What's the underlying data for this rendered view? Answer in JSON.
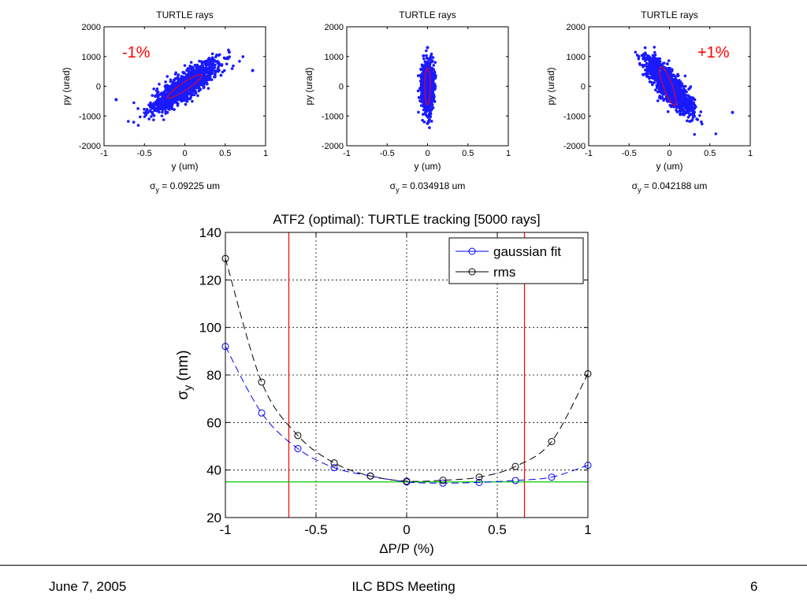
{
  "chart_data": [
    {
      "type": "scatter",
      "title": "TURTLE rays",
      "xlabel": "y (um)",
      "ylabel": "py (urad)",
      "xlim": [
        -1,
        1
      ],
      "ylim": [
        -2000,
        2000
      ],
      "xticks": [
        "-1",
        "-0.5",
        "0",
        "0.5",
        "1"
      ],
      "yticks": [
        "-2000",
        "-1000",
        "0",
        "1000",
        "2000"
      ],
      "annotation": "-1%",
      "sigma_label": "σy = 0.09225 um",
      "sigma_prefix": "σ",
      "sigma_sub": "y",
      "sigma_rest": " = 0.09225 um",
      "cloud": {
        "center": [
          0.0,
          0.0
        ],
        "slope": 1800,
        "spread_x": 0.2,
        "spread_y": 220
      },
      "ellipse": {
        "center": [
          0.0,
          0.0
        ],
        "semi_axis_major_dx": 0.21,
        "semi_axis_major_dy": 390,
        "semi_axis_minor_dx": -0.04,
        "semi_axis_minor_dy": 80
      },
      "outliers": [
        [
          0.84,
          530
        ],
        [
          -0.85,
          -450
        ],
        [
          0.55,
          1150
        ]
      ],
      "marker_color": "#1a1aff",
      "ellipse_color": "#ff0000"
    },
    {
      "type": "scatter",
      "title": "TURTLE rays",
      "xlabel": "y (um)",
      "ylabel": "py (urad)",
      "xlim": [
        -1,
        1
      ],
      "ylim": [
        -2000,
        2000
      ],
      "xticks": [
        "-1",
        "-0.5",
        "0",
        "0.5",
        "1"
      ],
      "yticks": [
        "-2000",
        "-1000",
        "0",
        "1000",
        "2000"
      ],
      "annotation": "",
      "sigma_label": "σy = 0.034918 um",
      "sigma_prefix": "σ",
      "sigma_sub": "y",
      "sigma_rest": " = 0.034918 um",
      "cloud": {
        "center": [
          0.0,
          0.0
        ],
        "slope": 0,
        "spread_x": 0.035,
        "spread_y": 380
      },
      "ellipse": {
        "center": [
          0.0,
          0.0
        ],
        "semi_axis_major_dx": 0.0,
        "semi_axis_major_dy": 620,
        "semi_axis_minor_dx": 0.035,
        "semi_axis_minor_dy": 0
      },
      "outliers": [
        [
          0.0,
          1300
        ],
        [
          0.0,
          -1250
        ]
      ],
      "marker_color": "#1a1aff",
      "ellipse_color": "#ff0000"
    },
    {
      "type": "scatter",
      "title": "TURTLE rays",
      "xlabel": "y (um)",
      "ylabel": "py (urad)",
      "xlim": [
        -1,
        1
      ],
      "ylim": [
        -2000,
        2000
      ],
      "xticks": [
        "-1",
        "-0.5",
        "0",
        "0.5",
        "1"
      ],
      "yticks": [
        "-2000",
        "-1000",
        "0",
        "1000",
        "2000"
      ],
      "annotation": "+1%",
      "sigma_label": "σy = 0.042188 um",
      "sigma_prefix": "σ",
      "sigma_sub": "y",
      "sigma_rest": " = 0.042188 um",
      "cloud": {
        "center": [
          0.0,
          0.0
        ],
        "slope": -2600,
        "spread_x": 0.14,
        "spread_y": 260
      },
      "ellipse": {
        "center": [
          -0.02,
          0.0
        ],
        "semi_axis_major_dx": -0.09,
        "semi_axis_major_dy": 650,
        "semi_axis_minor_dx": 0.05,
        "semi_axis_minor_dy": 60
      },
      "outliers": [
        [
          0.78,
          -880
        ],
        [
          -0.38,
          1000
        ],
        [
          -0.32,
          1070
        ]
      ],
      "marker_color": "#1a1aff",
      "ellipse_color": "#ff0000"
    },
    {
      "type": "line",
      "title": "ATF2 (optimal): TURTLE tracking [5000 rays]",
      "xlabel": "ΔP/P (%)",
      "ylabel": "σy (nm)",
      "ylabel_main": "σ",
      "ylabel_sub": "y",
      "ylabel_rest": " (nm)",
      "xlim": [
        -1,
        1
      ],
      "ylim": [
        20,
        140
      ],
      "xticks": [
        "-1",
        "-0.5",
        "0",
        "0.5",
        "1"
      ],
      "yticks": [
        "20",
        "40",
        "60",
        "80",
        "100",
        "120",
        "140"
      ],
      "grid": true,
      "legend_position": "top-right",
      "x": [
        -1,
        -0.8,
        -0.6,
        -0.4,
        -0.2,
        0,
        0.2,
        0.4,
        0.6,
        0.8,
        1
      ],
      "series": [
        {
          "name": "gaussian fit",
          "color": "#0000ff",
          "values": [
            92,
            64,
            49,
            41,
            37.5,
            35,
            34.5,
            34.8,
            35.6,
            37,
            42
          ]
        },
        {
          "name": "rms",
          "color": "#000000",
          "values": [
            129,
            77,
            54.5,
            43,
            37.5,
            35.3,
            35.7,
            37,
            41.5,
            52,
            80.5
          ]
        }
      ],
      "reference_lines": {
        "vertical_x": [
          -0.65,
          0.65
        ],
        "vertical_color": "#ff0000",
        "horizontal_y": 35,
        "horizontal_color": "#00cc00"
      }
    }
  ],
  "footer": {
    "date": "June 7, 2005",
    "title": "ILC BDS Meeting",
    "page": "6"
  }
}
